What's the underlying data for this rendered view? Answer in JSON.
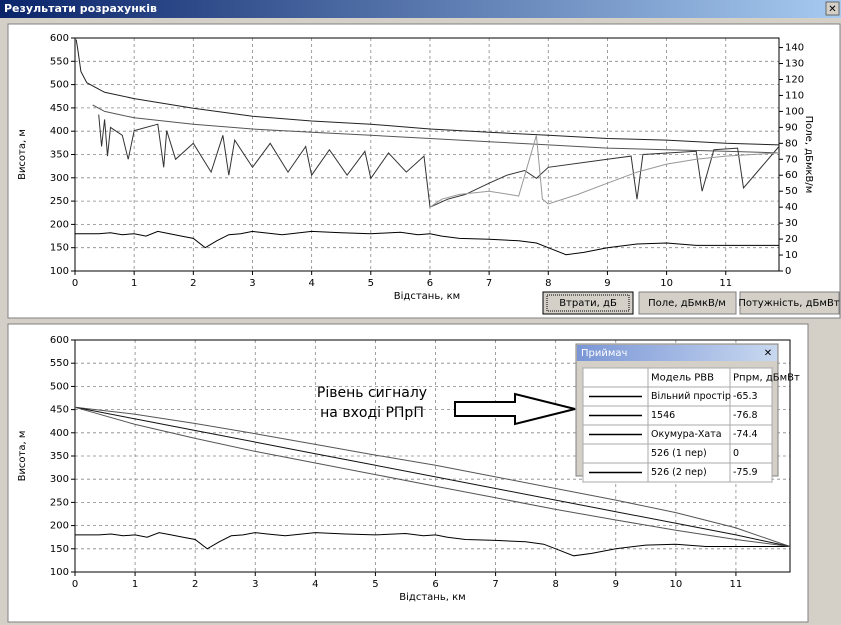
{
  "window": {
    "title": "Результати розрахунків",
    "close": "✕"
  },
  "chart_data": [
    {
      "type": "line",
      "xlabel": "Відстань, км",
      "ylabel": "Висота, м",
      "y2label": "Поле, дБмкВ/м",
      "xlim": [
        0,
        11.9
      ],
      "xticks": [
        0,
        1,
        2,
        3,
        4,
        5,
        6,
        7,
        8,
        9,
        10,
        11
      ],
      "ylim": [
        100,
        600
      ],
      "yticks": [
        100,
        150,
        200,
        250,
        300,
        350,
        400,
        450,
        500,
        550,
        600
      ],
      "y2lim": [
        0,
        146
      ],
      "y2ticks": [
        0,
        10,
        20,
        30,
        40,
        50,
        60,
        70,
        80,
        90,
        100,
        110,
        120,
        130,
        140
      ],
      "grid": true,
      "series": [
        {
          "color": "#000000",
          "x": [
            0,
            0.4,
            0.6,
            0.8,
            1,
            1.2,
            1.4,
            1.6,
            1.8,
            2,
            2.2,
            2.4,
            2.6,
            2.8,
            3,
            3.2,
            3.5,
            4,
            4.5,
            5,
            5.5,
            5.8,
            6,
            6.2,
            6.5,
            7,
            7.5,
            7.8,
            8,
            8.3,
            8.6,
            9,
            9.5,
            10,
            10.5,
            11,
            11.9
          ],
          "values": [
            180,
            180,
            182,
            178,
            180,
            175,
            185,
            180,
            175,
            170,
            150,
            165,
            178,
            180,
            185,
            182,
            178,
            185,
            182,
            180,
            183,
            178,
            180,
            175,
            170,
            168,
            165,
            160,
            150,
            135,
            140,
            150,
            158,
            160,
            155,
            155,
            155
          ]
        },
        {
          "color": "#222222",
          "axis": "y2",
          "x": [
            0.02,
            0.05,
            0.1,
            0.2,
            0.5,
            1,
            2,
            3,
            4,
            5,
            6,
            7,
            8,
            9,
            10,
            11,
            11.9
          ],
          "values": [
            145,
            138,
            125,
            118,
            112,
            108,
            102,
            97,
            94,
            92,
            89,
            87,
            85,
            83,
            82,
            80,
            79
          ]
        },
        {
          "color": "#555555",
          "axis": "y2",
          "x": [
            0.3,
            0.5,
            1,
            2,
            3,
            4,
            5,
            6,
            7,
            8,
            9,
            10,
            11,
            11.9
          ],
          "values": [
            104,
            100,
            96,
            92,
            89,
            87,
            85,
            83,
            81,
            79,
            77,
            76,
            75,
            74
          ]
        },
        {
          "color": "#333333",
          "axis": "y2",
          "x": [
            0.4,
            0.45,
            0.5,
            0.55,
            0.6,
            0.8,
            0.9,
            1.0,
            1.4,
            1.5,
            1.55,
            1.7,
            2.0,
            2.3,
            2.5,
            2.6,
            2.7,
            3.0,
            3.3,
            3.6,
            3.9,
            4.0,
            4.3,
            4.6,
            4.9,
            5.0,
            5.3,
            5.6,
            5.9,
            6.0,
            6.3,
            6.6,
            7.0,
            7.3,
            7.6,
            7.8,
            8.0,
            9.0,
            9.4,
            9.5,
            9.6,
            10.5,
            10.6,
            10.8,
            11.2,
            11.3,
            11.9
          ],
          "values": [
            98,
            78,
            95,
            72,
            90,
            85,
            70,
            88,
            92,
            65,
            88,
            70,
            80,
            62,
            85,
            60,
            82,
            65,
            80,
            62,
            78,
            60,
            76,
            60,
            75,
            58,
            74,
            62,
            72,
            40,
            45,
            48,
            55,
            60,
            63,
            58,
            65,
            70,
            72,
            45,
            73,
            75,
            50,
            76,
            77,
            52,
            78
          ]
        },
        {
          "color": "#999999",
          "axis": "y2",
          "x": [
            6.0,
            6.2,
            6.5,
            7.0,
            7.5,
            7.8,
            7.9,
            8.0,
            8.5,
            9.0,
            9.5,
            10.0,
            10.5,
            11.0,
            11.9
          ],
          "values": [
            40,
            45,
            48,
            50,
            47,
            85,
            45,
            42,
            48,
            55,
            62,
            67,
            70,
            72,
            74
          ]
        }
      ]
    },
    {
      "type": "line",
      "xlabel": "Відстань, км",
      "ylabel": "Висота, м",
      "xlim": [
        0,
        11.9
      ],
      "xticks": [
        0,
        1,
        2,
        3,
        4,
        5,
        6,
        7,
        8,
        9,
        10,
        11
      ],
      "ylim": [
        100,
        600
      ],
      "yticks": [
        100,
        150,
        200,
        250,
        300,
        350,
        400,
        450,
        500,
        550,
        600
      ],
      "grid": true,
      "series": [
        {
          "color": "#000000",
          "x": [
            0,
            0.4,
            0.6,
            0.8,
            1,
            1.2,
            1.4,
            1.6,
            1.8,
            2,
            2.2,
            2.4,
            2.6,
            2.8,
            3,
            3.2,
            3.5,
            4,
            4.5,
            5,
            5.5,
            5.8,
            6,
            6.2,
            6.5,
            7,
            7.5,
            7.8,
            8,
            8.3,
            8.6,
            9,
            9.5,
            10,
            10.5,
            11,
            11.9
          ],
          "values": [
            180,
            180,
            182,
            178,
            180,
            175,
            185,
            180,
            175,
            170,
            150,
            165,
            178,
            180,
            185,
            182,
            178,
            185,
            182,
            180,
            183,
            178,
            180,
            175,
            170,
            168,
            165,
            160,
            150,
            135,
            140,
            150,
            158,
            160,
            155,
            155,
            155
          ]
        },
        {
          "color": "#555555",
          "x": [
            0,
            1,
            2,
            3,
            4,
            5,
            6,
            7,
            8,
            9,
            10,
            11,
            11.9
          ],
          "values": [
            455,
            440,
            420,
            398,
            375,
            352,
            330,
            305,
            280,
            255,
            228,
            195,
            155
          ]
        },
        {
          "color": "#111111",
          "x": [
            0,
            1,
            2,
            3,
            4,
            5,
            6,
            7,
            8,
            9,
            10,
            11,
            11.9
          ],
          "values": [
            455,
            430,
            405,
            380,
            355,
            330,
            305,
            280,
            255,
            230,
            205,
            180,
            155
          ]
        },
        {
          "color": "#555555",
          "x": [
            0,
            1,
            2,
            3,
            4,
            5,
            6,
            7,
            8,
            9,
            10,
            11,
            11.9
          ],
          "values": [
            455,
            418,
            388,
            360,
            335,
            310,
            285,
            260,
            235,
            212,
            190,
            170,
            155
          ]
        }
      ]
    }
  ],
  "buttons": [
    "Втрати, дБ",
    "Поле, дБмкВ/м",
    "Потужність, дБмВт"
  ],
  "annotation": [
    "Рівень сигналу",
    "на вході РПрП"
  ],
  "receiver": {
    "title": "Приймач",
    "close": "✕",
    "header": [
      "Модель РВВ",
      "Pпрм, дБмВт"
    ],
    "rows": [
      [
        "Вільний простір",
        -65.3
      ],
      [
        "1546",
        -76.8
      ],
      [
        "Окумура-Хата",
        -74.4
      ],
      [
        "526 (1 пер)",
        0
      ],
      [
        "526 (2 пер)",
        -75.9
      ]
    ]
  }
}
